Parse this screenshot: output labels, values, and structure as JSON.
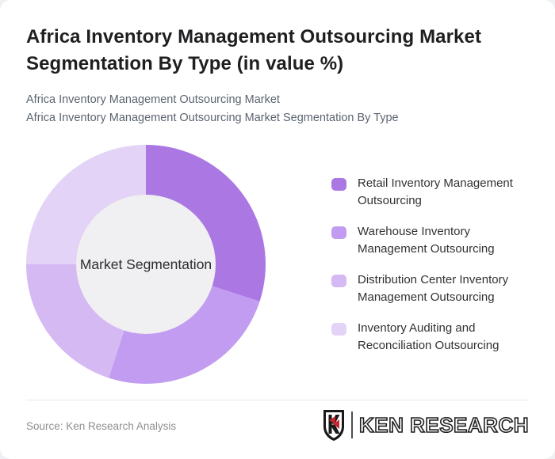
{
  "header": {
    "title": "Africa Inventory Management Outsourcing Market Segmentation By Type (in value %)",
    "subtitle1": "Africa Inventory Management Outsourcing Market",
    "subtitle2": "Africa Inventory Management Outsourcing Market Segmentation By Type"
  },
  "chart_data": {
    "type": "pie",
    "variant": "donut",
    "title": "Africa Inventory Management Outsourcing Market Segmentation By Type (in value %)",
    "center_label": "Market Segmentation",
    "unit": "value %",
    "categories": [
      "Retail Inventory Management Outsourcing",
      "Warehouse Inventory Management Outsourcing",
      "Distribution Center Inventory Management Outsourcing",
      "Inventory Auditing and Reconciliation Outsourcing"
    ],
    "values": [
      30,
      25,
      20,
      25
    ],
    "colors": [
      "#ab78e3",
      "#c29cf0",
      "#d5b9f3",
      "#e3d3f7"
    ],
    "hole_color": "#f0eff1",
    "start_angle_deg": 0,
    "direction": "clockwise",
    "legend_position": "right",
    "data_labels_shown": false
  },
  "legend": {
    "items": [
      {
        "label": "Retail Inventory Management Outsourcing",
        "color": "#ab78e3"
      },
      {
        "label": "Warehouse Inventory Management Outsourcing",
        "color": "#c29cf0"
      },
      {
        "label": "Distribution Center Inventory Management Outsourcing",
        "color": "#d5b9f3"
      },
      {
        "label": "Inventory Auditing and Reconciliation Outsourcing",
        "color": "#e3d3f7"
      }
    ]
  },
  "footer": {
    "source": "Source: Ken Research Analysis",
    "logo_text": "KEN RESEARCH",
    "logo_shield_letter": "K",
    "logo_red": "#c9252c",
    "logo_dark": "#1a1a1a"
  }
}
